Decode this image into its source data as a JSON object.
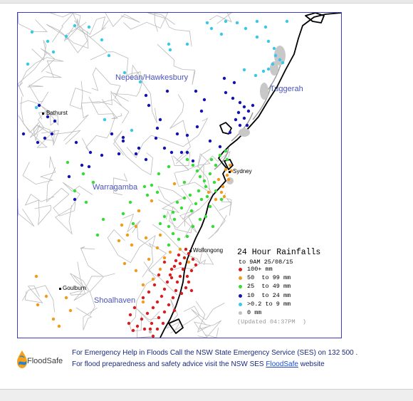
{
  "map": {
    "regions": [
      "Nepean/Hawkesbury",
      "Tuggerah",
      "Warragamba",
      "Shoalhaven"
    ],
    "towns": [
      "Bathurst",
      "Sydney",
      "Wollongong",
      "Goulburn"
    ],
    "colors": {
      "frame": "#3c3cc8",
      "catchment": "#bbbbbb",
      "coast": "#000000",
      "red": "#d81e1e",
      "orange": "#f29a1a",
      "green": "#33dd33",
      "blue": "#1414b4",
      "cyan": "#38c8e8",
      "grey": "#c0c0c0"
    }
  },
  "legend": {
    "title": "24 Hour Rainfalls",
    "subtitle": "to 9AM 25/08/15",
    "items": [
      {
        "label": "100+ mm",
        "color": "#d81e1e"
      },
      {
        "label": "50  to 99 mm",
        "color": "#f29a1a"
      },
      {
        "label": "25  to 49 mm",
        "color": "#33dd33"
      },
      {
        "label": "10  to 24 mm",
        "color": "#1414b4"
      },
      {
        "label": ">0.2 to 9 mm",
        "color": "#38c8e8"
      },
      {
        "label": "0 mm",
        "color": "#c0c0c0"
      }
    ],
    "updated": "(Updated 04:37PM  )"
  },
  "footer": {
    "logo_text": "FloodSafe",
    "emergency_line": "For Emergency Help in Floods Call the NSW State Emergency Service (SES) on 132 500 .",
    "prep_before": "For flood preparedness and safety advice visit the NSW SES ",
    "prep_link": "FloodSafe",
    "prep_after": " website"
  }
}
